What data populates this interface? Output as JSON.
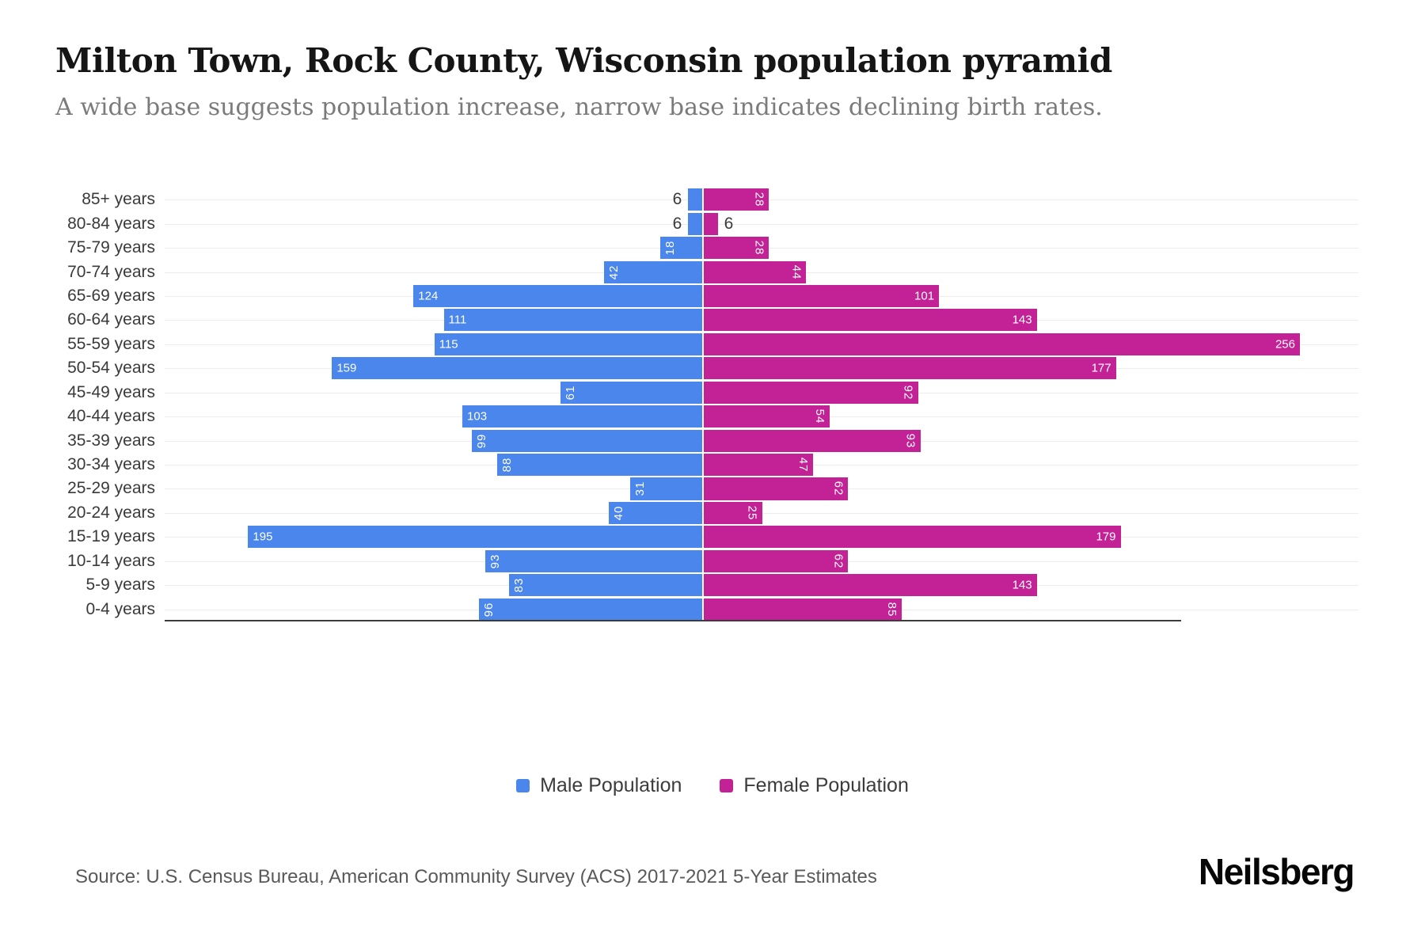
{
  "header": {
    "title": "Milton Town, Rock County, Wisconsin population pyramid",
    "subtitle": "A wide base suggests population increase, narrow base indicates declining birth rates."
  },
  "chart_data": {
    "type": "bar",
    "variant": "population-pyramid",
    "categories": [
      "85+ years",
      "80-84 years",
      "75-79 years",
      "70-74 years",
      "65-69 years",
      "60-64 years",
      "55-59 years",
      "50-54 years",
      "45-49 years",
      "40-44 years",
      "35-39 years",
      "30-34 years",
      "25-29 years",
      "20-24 years",
      "15-19 years",
      "10-14 years",
      "5-9 years",
      "0-4 years"
    ],
    "series": [
      {
        "name": "Male Population",
        "side": "left",
        "color": "#4A86EC",
        "values": [
          6,
          6,
          18,
          42,
          124,
          111,
          115,
          159,
          61,
          103,
          99,
          88,
          31,
          40,
          195,
          93,
          83,
          96
        ]
      },
      {
        "name": "Female Population",
        "side": "right",
        "color": "#C32196",
        "values": [
          28,
          6,
          28,
          44,
          101,
          143,
          256,
          177,
          92,
          54,
          93,
          47,
          62,
          25,
          179,
          62,
          143,
          85
        ]
      }
    ],
    "xmax": 256,
    "grid": true,
    "legend_position": "bottom",
    "bar_label_color_inside": "#ffffff",
    "bar_label_color_outside": "#3a3a3a"
  },
  "footer": {
    "source": "Source: U.S. Census Bureau, American Community Survey (ACS) 2017-2021 5-Year Estimates",
    "brand": "Neilsberg"
  }
}
